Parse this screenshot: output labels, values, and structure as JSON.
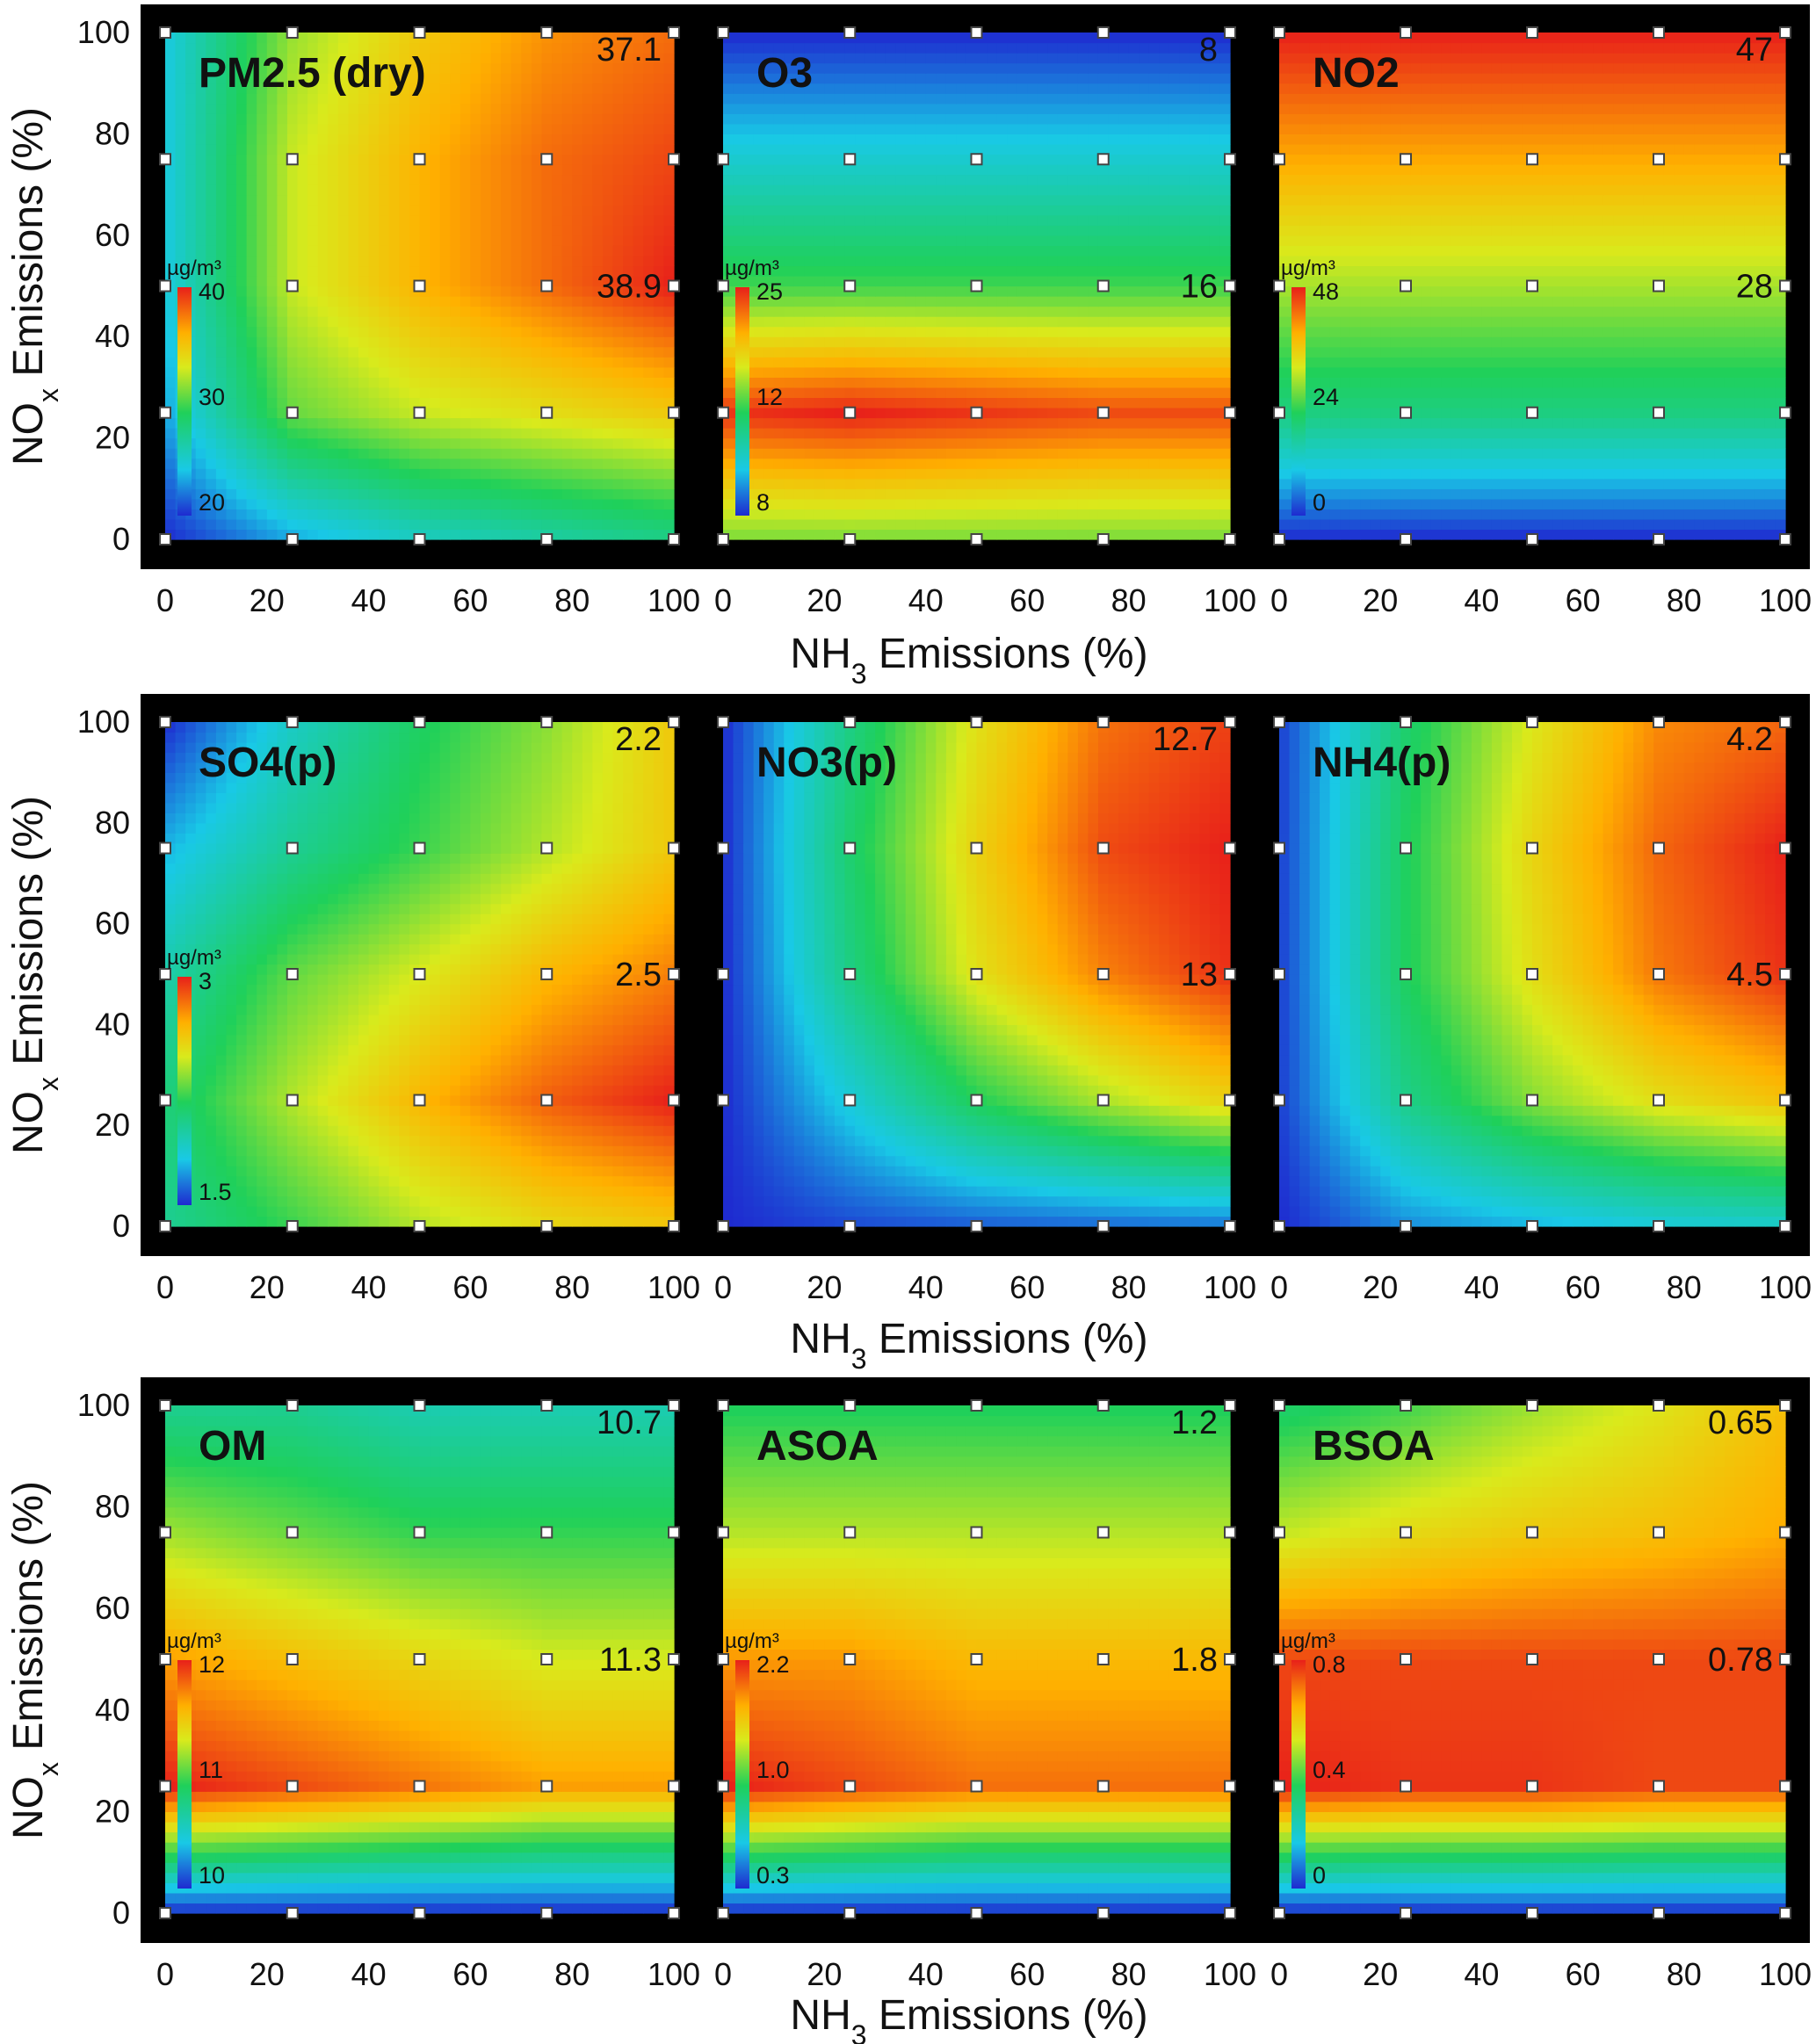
{
  "axis": {
    "xlabel_prefix": "NH",
    "xlabel_sub": "3",
    "xlabel_suffix": " Emissions (%)",
    "ylabel_prefix": "NO",
    "ylabel_sub": "x",
    "ylabel_suffix": " Emissions (%)",
    "ticks": [
      "0",
      "20",
      "40",
      "60",
      "80",
      "100"
    ]
  },
  "unit": "µg/m³",
  "colors": {
    "low": "#1e3cd6",
    "mid": "#1fd05a",
    "high": "#f0281c",
    "frame": "#000000",
    "marker": "#ffffff"
  },
  "chart_data": [
    {
      "type": "heatmap",
      "title": "PM2.5 (dry)",
      "x": [
        0,
        25,
        50,
        75,
        100
      ],
      "y": [
        0,
        25,
        50,
        75,
        100
      ],
      "xlim": [
        0,
        100
      ],
      "ylim": [
        0,
        100
      ],
      "colorbar": {
        "ticks": [
          "40",
          "30",
          "20"
        ],
        "range": [
          20,
          40
        ]
      },
      "annotations": [
        {
          "x": 100,
          "y": 100,
          "text": "37.1"
        },
        {
          "x": 100,
          "y": 50,
          "text": "38.9"
        }
      ],
      "values": [
        [
          20,
          23,
          25,
          26,
          27
        ],
        [
          23,
          30,
          32,
          33,
          34
        ],
        [
          24,
          32,
          35,
          37,
          39
        ],
        [
          24,
          32,
          35,
          37,
          38
        ],
        [
          24,
          31,
          34,
          36,
          37
        ]
      ]
    },
    {
      "type": "heatmap",
      "title": "O3",
      "x": [
        0,
        25,
        50,
        75,
        100
      ],
      "y": [
        0,
        25,
        50,
        75,
        100
      ],
      "xlim": [
        0,
        100
      ],
      "ylim": [
        0,
        100
      ],
      "colorbar": {
        "ticks": [
          "25",
          "12",
          "8"
        ],
        "range": [
          8,
          25
        ]
      },
      "annotations": [
        {
          "x": 100,
          "y": 100,
          "text": "8"
        },
        {
          "x": 100,
          "y": 50,
          "text": "16"
        }
      ],
      "values": [
        [
          17,
          17,
          17,
          17,
          17
        ],
        [
          24,
          24.5,
          24,
          23.5,
          23.5
        ],
        [
          16,
          16,
          16,
          16,
          16
        ],
        [
          12,
          12,
          12,
          12,
          12
        ],
        [
          8,
          8,
          8,
          8,
          8
        ]
      ]
    },
    {
      "type": "heatmap",
      "title": "NO2",
      "x": [
        0,
        25,
        50,
        75,
        100
      ],
      "y": [
        0,
        25,
        50,
        75,
        100
      ],
      "xlim": [
        0,
        100
      ],
      "ylim": [
        0,
        100
      ],
      "colorbar": {
        "ticks": [
          "48",
          "24",
          "0"
        ],
        "range": [
          0,
          48
        ]
      },
      "annotations": [
        {
          "x": 100,
          "y": 100,
          "text": "47"
        },
        {
          "x": 100,
          "y": 50,
          "text": "28"
        }
      ],
      "values": [
        [
          0,
          0,
          0,
          0,
          0
        ],
        [
          18,
          18,
          18,
          18,
          18
        ],
        [
          28,
          28,
          28,
          28,
          28
        ],
        [
          38,
          38,
          38,
          38,
          38
        ],
        [
          47,
          47,
          47,
          47,
          47
        ]
      ]
    },
    {
      "type": "heatmap",
      "title": "SO4(p)",
      "x": [
        0,
        25,
        50,
        75,
        100
      ],
      "y": [
        0,
        25,
        50,
        75,
        100
      ],
      "xlim": [
        0,
        100
      ],
      "ylim": [
        0,
        100
      ],
      "colorbar": {
        "ticks": [
          "3",
          "1.5"
        ],
        "range": [
          0,
          3
        ]
      },
      "annotations": [
        {
          "x": 100,
          "y": 100,
          "text": "2.2"
        },
        {
          "x": 100,
          "y": 50,
          "text": "2.5"
        }
      ],
      "values": [
        [
          1.3,
          1.6,
          1.9,
          2.1,
          2.2
        ],
        [
          1.4,
          1.9,
          2.3,
          2.6,
          2.8
        ],
        [
          1.2,
          1.7,
          2.0,
          2.3,
          2.5
        ],
        [
          0.9,
          1.3,
          1.6,
          1.9,
          2.2
        ],
        [
          0.5,
          1.1,
          1.5,
          1.8,
          2.2
        ]
      ]
    },
    {
      "type": "heatmap",
      "title": "NO3(p)",
      "x": [
        0,
        25,
        50,
        75,
        100
      ],
      "y": [
        0,
        25,
        50,
        75,
        100
      ],
      "xlim": [
        0,
        100
      ],
      "ylim": [
        0,
        100
      ],
      "colorbar": null,
      "annotations": [
        {
          "x": 100,
          "y": 100,
          "text": "12.7"
        },
        {
          "x": 100,
          "y": 50,
          "text": "13"
        }
      ],
      "values": [
        [
          0,
          0.5,
          0.8,
          1.0,
          1.2
        ],
        [
          0,
          3,
          6,
          8,
          9.5
        ],
        [
          0,
          5,
          9,
          11.5,
          13
        ],
        [
          0,
          5.5,
          9.5,
          12.5,
          13.3
        ],
        [
          0,
          5,
          9,
          11.8,
          12.7
        ]
      ]
    },
    {
      "type": "heatmap",
      "title": "NH4(p)",
      "x": [
        0,
        25,
        50,
        75,
        100
      ],
      "y": [
        0,
        25,
        50,
        75,
        100
      ],
      "xlim": [
        0,
        100
      ],
      "ylim": [
        0,
        100
      ],
      "colorbar": null,
      "annotations": [
        {
          "x": 100,
          "y": 100,
          "text": "4.2"
        },
        {
          "x": 100,
          "y": 50,
          "text": "4.5"
        }
      ],
      "values": [
        [
          0.5,
          1.0,
          1.2,
          1.4,
          1.5
        ],
        [
          0.6,
          2.0,
          2.8,
          3.3,
          3.6
        ],
        [
          0.6,
          2.3,
          3.3,
          4.1,
          4.5
        ],
        [
          0.6,
          2.3,
          3.4,
          4.2,
          4.6
        ],
        [
          0.6,
          2.2,
          3.2,
          4.0,
          4.2
        ]
      ]
    },
    {
      "type": "heatmap",
      "title": "OM",
      "x": [
        0,
        25,
        50,
        75,
        100
      ],
      "y": [
        0,
        25,
        50,
        75,
        100
      ],
      "xlim": [
        0,
        100
      ],
      "ylim": [
        0,
        100
      ],
      "colorbar": {
        "ticks": [
          "12",
          "11",
          "10"
        ],
        "range": [
          10,
          12
        ]
      },
      "annotations": [
        {
          "x": 100,
          "y": 100,
          "text": "10.7"
        },
        {
          "x": 100,
          "y": 50,
          "text": "11.3"
        }
      ],
      "values": [
        [
          10.2,
          10.2,
          10.2,
          10.2,
          10.2
        ],
        [
          11.9,
          11.8,
          11.7,
          11.6,
          11.6
        ],
        [
          11.6,
          11.5,
          11.4,
          11.3,
          11.3
        ],
        [
          11.2,
          11.1,
          11.0,
          11.0,
          11.0
        ],
        [
          10.8,
          10.8,
          10.7,
          10.7,
          10.7
        ]
      ]
    },
    {
      "type": "heatmap",
      "title": "ASOA",
      "x": [
        0,
        25,
        50,
        75,
        100
      ],
      "y": [
        0,
        25,
        50,
        75,
        100
      ],
      "xlim": [
        0,
        100
      ],
      "ylim": [
        0,
        100
      ],
      "colorbar": {
        "ticks": [
          "2.2",
          "1.0",
          "0.3"
        ],
        "range": [
          0.3,
          2.2
        ]
      },
      "annotations": [
        {
          "x": 100,
          "y": 100,
          "text": "1.2"
        },
        {
          "x": 100,
          "y": 50,
          "text": "1.8"
        }
      ],
      "values": [
        [
          0.4,
          0.4,
          0.4,
          0.4,
          0.4
        ],
        [
          2.2,
          2.1,
          2.0,
          2.0,
          2.0
        ],
        [
          1.9,
          1.9,
          1.8,
          1.8,
          1.8
        ],
        [
          1.5,
          1.5,
          1.5,
          1.5,
          1.5
        ],
        [
          1.2,
          1.2,
          1.2,
          1.2,
          1.2
        ]
      ]
    },
    {
      "type": "heatmap",
      "title": "BSOA",
      "x": [
        0,
        25,
        50,
        75,
        100
      ],
      "y": [
        0,
        25,
        50,
        75,
        100
      ],
      "xlim": [
        0,
        100
      ],
      "ylim": [
        0,
        100
      ],
      "colorbar": {
        "ticks": [
          "0.8",
          "0.4",
          "0"
        ],
        "range": [
          0,
          0.8
        ]
      },
      "annotations": [
        {
          "x": 100,
          "y": 100,
          "text": "0.65"
        },
        {
          "x": 100,
          "y": 50,
          "text": "0.78"
        }
      ],
      "values": [
        [
          0.1,
          0.1,
          0.1,
          0.1,
          0.1
        ],
        [
          0.82,
          0.8,
          0.8,
          0.78,
          0.78
        ],
        [
          0.78,
          0.78,
          0.78,
          0.78,
          0.78
        ],
        [
          0.55,
          0.6,
          0.63,
          0.65,
          0.68
        ],
        [
          0.4,
          0.45,
          0.52,
          0.58,
          0.65
        ]
      ]
    }
  ]
}
